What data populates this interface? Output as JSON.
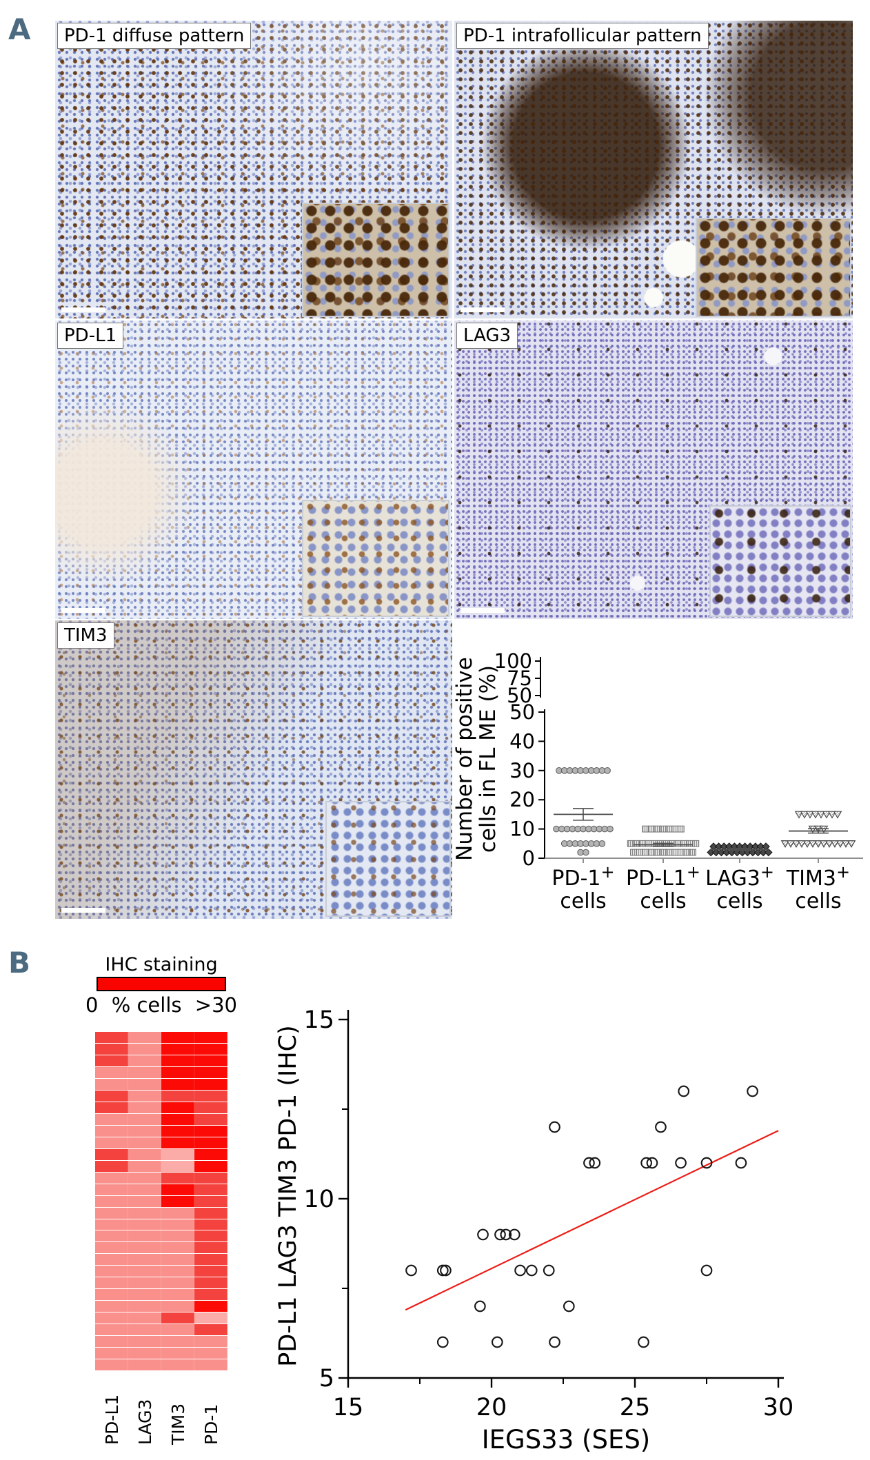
{
  "panel_a": {
    "letter": "A"
  },
  "panel_b": {
    "letter": "B"
  },
  "ihc_images": [
    {
      "id": "pd1-diffuse",
      "label": "PD-1 diffuse pattern"
    },
    {
      "id": "pd1-intrafollicular",
      "label": "PD-1 intrafollicular pattern"
    },
    {
      "id": "pdl1",
      "label": "PD-L1"
    },
    {
      "id": "lag3",
      "label": "LAG3"
    },
    {
      "id": "tim3",
      "label": "TIM3"
    }
  ],
  "colors": {
    "panel_letter": "#4c6b80",
    "legend_red": "#fa0400",
    "trend_line": "#ed1c16"
  },
  "chart_data": [
    {
      "id": "dotplot",
      "type": "scatter",
      "title": "",
      "ylabel": "Number of positive cells in FL ME (%)",
      "ylabel_lines": [
        "Number of positive",
        "cells in FL ME (%)"
      ],
      "axis_break": true,
      "upper_ticks": [
        100,
        75,
        50
      ],
      "main_ticks": [
        50,
        40,
        30,
        20,
        10,
        0
      ],
      "ylim_main": [
        0,
        50
      ],
      "categories": [
        {
          "name": "PD-1",
          "sup": "+",
          "line2": "cells"
        },
        {
          "name": "PD-L1",
          "sup": "+",
          "line2": "cells"
        },
        {
          "name": "LAG3",
          "sup": "+",
          "line2": "cells"
        },
        {
          "name": "TIM3",
          "sup": "+",
          "line2": "cells"
        }
      ],
      "series": [
        {
          "category": "PD-1+ cells",
          "marker": "circle",
          "rows": [
            {
              "value": 30,
              "count": 10
            },
            {
              "value": 10,
              "count": 11
            },
            {
              "value": 5,
              "count": 8
            },
            {
              "value": 2,
              "count": 2
            }
          ],
          "mean": 15,
          "err_lo": 13,
          "err_hi": 17
        },
        {
          "category": "PD-L1+ cells",
          "marker": "square",
          "rows": [
            {
              "value": 10,
              "count": 7
            },
            {
              "value": 5,
              "count": 12
            },
            {
              "value": 2,
              "count": 11
            }
          ],
          "mean": 4.6,
          "err_lo": 4.1,
          "err_hi": 5.1
        },
        {
          "category": "LAG3+ cells",
          "marker": "diamond",
          "rows": [
            {
              "value": 4,
              "count": 11
            },
            {
              "value": 2,
              "count": 12
            }
          ],
          "mean": 3,
          "err_lo": 2.6,
          "err_hi": 3.4
        },
        {
          "category": "TIM3+ cells",
          "marker": "triangle-down",
          "rows": [
            {
              "value": 15,
              "count": 8
            },
            {
              "value": 10,
              "count": 3
            },
            {
              "value": 5,
              "count": 13
            }
          ],
          "mean": 9.3,
          "err_lo": 8.6,
          "err_hi": 10.1
        }
      ]
    },
    {
      "id": "ihc-heatmap",
      "type": "heatmap",
      "legend_title": "IHC staining",
      "legend_min_label": "0",
      "legend_mid_label": "% cells",
      "legend_max_label": ">30",
      "legend_color": "#fa0400",
      "columns": [
        "PD-L1",
        "LAG3",
        "TIM3",
        "PD-1"
      ],
      "palette": {
        "R": "#fb0a06",
        "M": "#f4423e",
        "P": "#f9908c",
        "L": "#fcaca8"
      },
      "rows": [
        "MPRR",
        "MPRR",
        "MPRR",
        "PPRR",
        "PPRR",
        "MPMM",
        "MPRM",
        "PPRM",
        "PPRR",
        "PPRR",
        "MPLR",
        "MPLR",
        "PPMM",
        "PPRM",
        "PPRM",
        "PPPM",
        "PPPM",
        "PPPM",
        "PPPM",
        "PPPM",
        "PPPM",
        "PPPM",
        "PPPM",
        "PPPR",
        "PPML",
        "PPPM",
        "PPPP",
        "PPPP",
        "PPPP"
      ]
    },
    {
      "id": "correlation",
      "type": "scatter",
      "xlabel": "IEGS33 (SES)",
      "ylabel": "PD-L1 LAG3 TIM3 PD-1 (IHC)",
      "xlim": [
        15,
        30
      ],
      "ylim": [
        5,
        15
      ],
      "x_major_ticks": [
        15,
        20,
        25,
        30
      ],
      "x_minor_ticks": [
        17.5,
        22.5,
        27.5
      ],
      "y_major_ticks": [
        5,
        10,
        15
      ],
      "y_minor_ticks": [
        7.5,
        12.5
      ],
      "points": [
        [
          17.2,
          8
        ],
        [
          18.3,
          8
        ],
        [
          18.4,
          8
        ],
        [
          18.3,
          6
        ],
        [
          19.6,
          7
        ],
        [
          19.7,
          9
        ],
        [
          20.2,
          6
        ],
        [
          20.3,
          9
        ],
        [
          20.5,
          9
        ],
        [
          20.8,
          9
        ],
        [
          21.0,
          8
        ],
        [
          21.4,
          8
        ],
        [
          22.0,
          8
        ],
        [
          22.2,
          12
        ],
        [
          22.2,
          6
        ],
        [
          22.7,
          7
        ],
        [
          23.4,
          11
        ],
        [
          23.6,
          11
        ],
        [
          25.3,
          6
        ],
        [
          25.4,
          11
        ],
        [
          25.6,
          11
        ],
        [
          25.9,
          12
        ],
        [
          26.6,
          11
        ],
        [
          26.7,
          13
        ],
        [
          27.5,
          11
        ],
        [
          27.5,
          8
        ],
        [
          28.7,
          11
        ],
        [
          29.1,
          13
        ]
      ],
      "trend_line": {
        "x1": 17.0,
        "y1": 6.9,
        "x2": 30.0,
        "y2": 11.9,
        "color": "#ed1c16"
      },
      "point_style": {
        "marker": "open-circle",
        "stroke": "#161616"
      }
    }
  ]
}
